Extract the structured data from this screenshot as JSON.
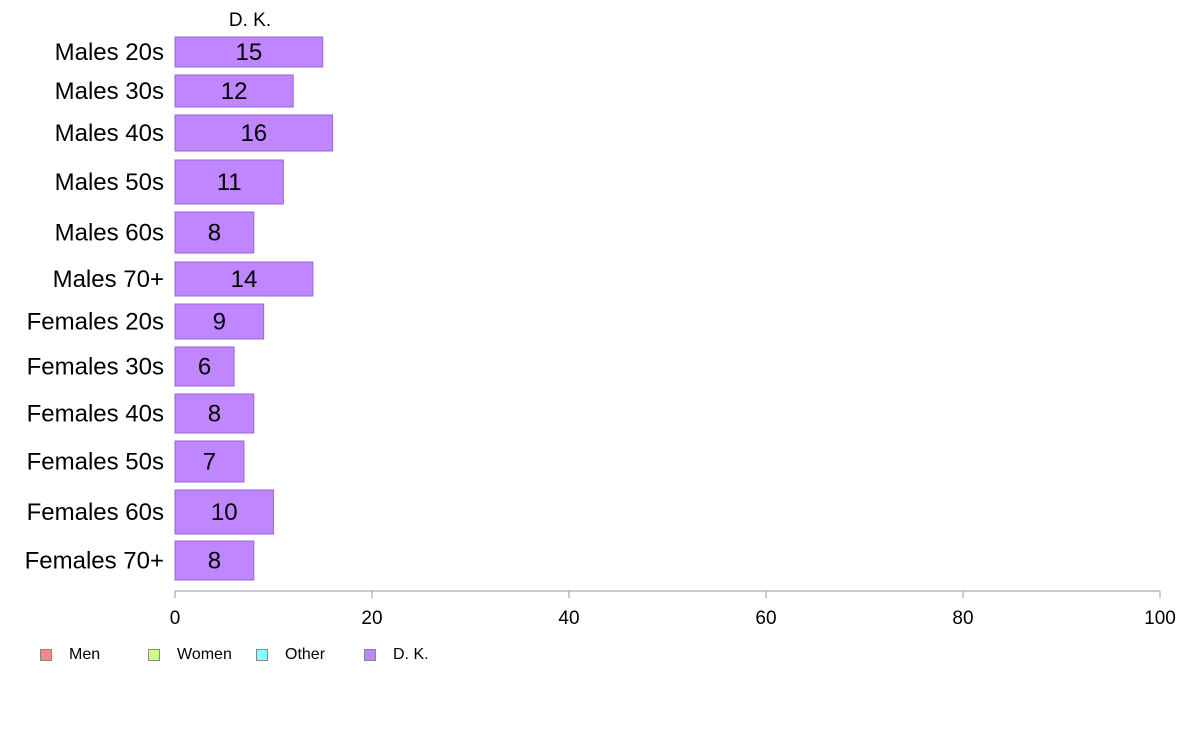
{
  "chart_data": {
    "type": "bar",
    "orientation": "horizontal",
    "series_title": "D. K.",
    "categories": [
      "Males 20s",
      "Males 30s",
      "Males 40s",
      "Males 50s",
      "Males 60s",
      "Males 70+",
      "Females 20s",
      "Females 30s",
      "Females 40s",
      "Females 50s",
      "Females 60s",
      "Females 70+"
    ],
    "series": [
      {
        "name": "D. K.",
        "color": "#bf86ff",
        "values": [
          15,
          12,
          16,
          11,
          8,
          14,
          9,
          6,
          8,
          7,
          10,
          8
        ]
      }
    ],
    "xlim": [
      0,
      100
    ],
    "xticks": [
      0,
      20,
      40,
      60,
      80,
      100
    ],
    "legend": {
      "placement": "bottom-left",
      "entries": [
        {
          "label": "Men",
          "color": "#f78787"
        },
        {
          "label": "Women",
          "color": "#ccff88"
        },
        {
          "label": "Other",
          "color": "#88ffff"
        },
        {
          "label": "D. K.",
          "color": "#bf86ff"
        }
      ]
    },
    "grid": false
  }
}
